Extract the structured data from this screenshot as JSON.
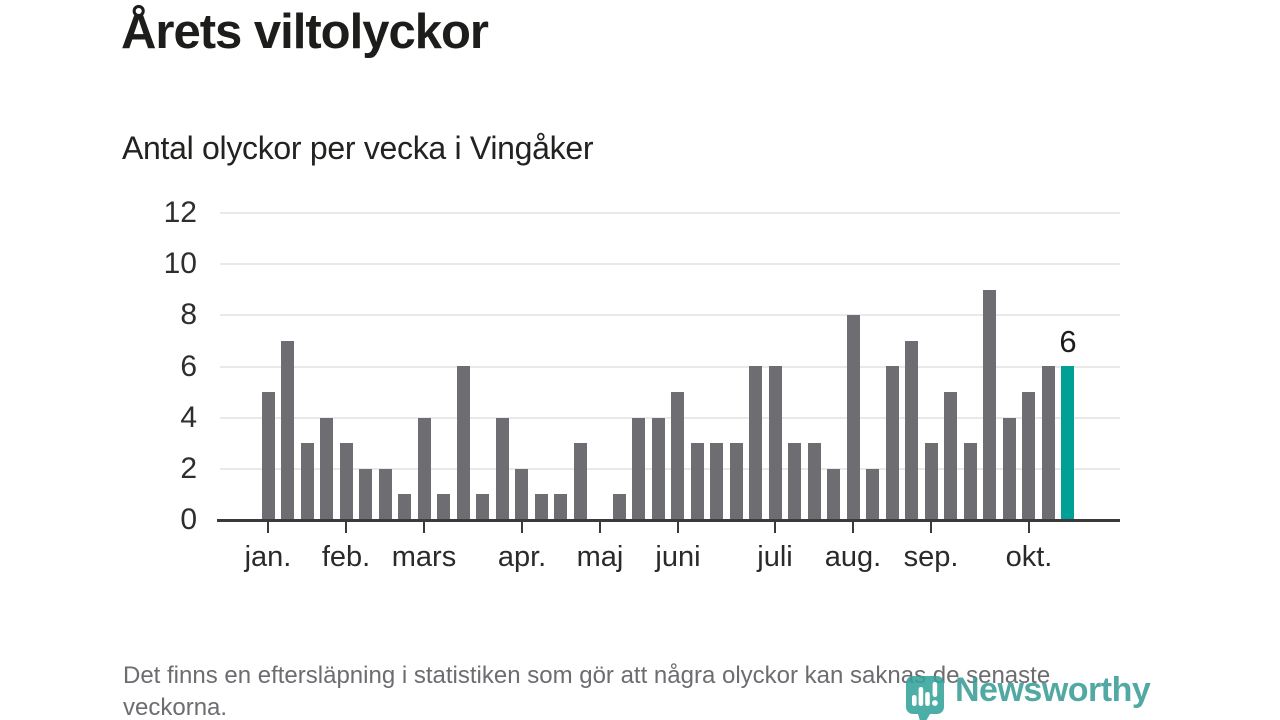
{
  "header": {
    "title": "Årets viltolyckor",
    "subtitle": "Antal olyckor per vecka i Vingåker"
  },
  "chart_data": {
    "type": "bar",
    "title": "Årets viltolyckor",
    "subtitle": "Antal olyckor per vecka i Vingåker",
    "x_unit": "vecka",
    "first_week": 1,
    "values": [
      5,
      7,
      3,
      4,
      3,
      2,
      2,
      1,
      4,
      1,
      6,
      1,
      4,
      2,
      1,
      1,
      3,
      0,
      1,
      4,
      4,
      5,
      3,
      3,
      3,
      6,
      6,
      3,
      3,
      2,
      8,
      2,
      6,
      7,
      3,
      5,
      3,
      9,
      4,
      5,
      6,
      6
    ],
    "ylim": [
      0,
      12
    ],
    "yticks": [
      0,
      2,
      4,
      6,
      8,
      10,
      12
    ],
    "month_ticks": [
      {
        "label": "jan.",
        "week": 1
      },
      {
        "label": "feb.",
        "week": 5
      },
      {
        "label": "mars",
        "week": 9
      },
      {
        "label": "apr.",
        "week": 14
      },
      {
        "label": "maj",
        "week": 18
      },
      {
        "label": "juni",
        "week": 22
      },
      {
        "label": "juli",
        "week": 27
      },
      {
        "label": "aug.",
        "week": 31
      },
      {
        "label": "sep.",
        "week": 35
      },
      {
        "label": "okt.",
        "week": 40
      }
    ],
    "highlight_last": true,
    "last_value_label": "6",
    "grid": true,
    "legend": "none",
    "colors": {
      "bar": "#6e6e72",
      "highlight": "#00a096",
      "gridline": "#e9e9e9",
      "axis": "#3a3a3a"
    }
  },
  "footer": {
    "note": "Det finns en eftersläpning i statistiken som gör att några olyckor kan saknas de senaste veckorna.",
    "brand": "Newsworthy",
    "brand_color": "#3b9e98"
  }
}
